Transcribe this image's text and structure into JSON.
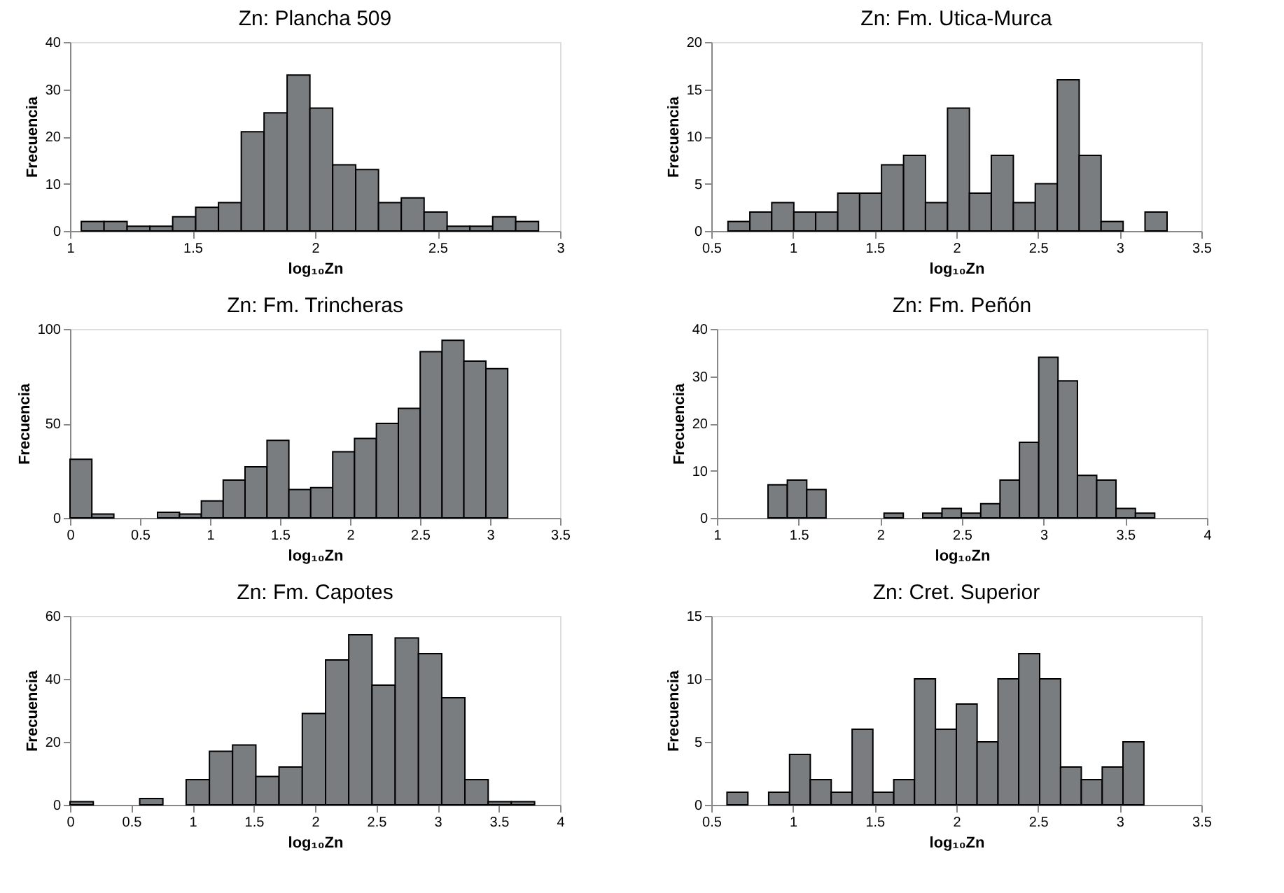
{
  "chart_data": [
    {
      "type": "histogram",
      "title": "Zn: Plancha 509",
      "xlabel": "log₁₀Zn",
      "ylabel": "Frecuencia",
      "color": "#7a7d80",
      "bins": [
        1.046,
        1.139,
        1.233,
        1.326,
        1.419,
        1.513,
        1.606,
        1.699,
        1.792,
        1.886,
        1.979,
        2.072,
        2.166,
        2.259,
        2.352,
        2.445,
        2.539,
        2.632,
        2.725,
        2.819,
        2.912
      ],
      "values": [
        2,
        2,
        1,
        1,
        3,
        5,
        6,
        21,
        25,
        33,
        26,
        14,
        13,
        6,
        7,
        4,
        1,
        1,
        3,
        2
      ],
      "xlim": [
        1,
        3
      ],
      "xticks": [
        1,
        1.5,
        2,
        2.5,
        3
      ],
      "ylim": [
        0,
        40
      ],
      "yticks": [
        0,
        10,
        20,
        30,
        40
      ]
    },
    {
      "type": "histogram",
      "title": "Zn: Fm. Utica-Murca",
      "xlabel": "log₁₀Zn",
      "ylabel": "Frecuencia",
      "color": "#7a7d80",
      "bins": [
        0.602,
        0.736,
        0.87,
        1.005,
        1.139,
        1.274,
        1.408,
        1.542,
        1.677,
        1.811,
        1.946,
        2.08,
        2.214,
        2.349,
        2.483,
        2.618,
        2.752,
        2.886,
        3.021,
        3.155,
        3.29
      ],
      "values": [
        1,
        2,
        3,
        2,
        2,
        4,
        4,
        7,
        8,
        3,
        13,
        4,
        8,
        3,
        5,
        16,
        8,
        1,
        0,
        2
      ],
      "xlim": [
        0.5,
        3.5
      ],
      "xticks": [
        0.5,
        1,
        1.5,
        2,
        2.5,
        3,
        3.5
      ],
      "ylim": [
        0,
        20
      ],
      "yticks": [
        0,
        5,
        10,
        15,
        20
      ]
    },
    {
      "type": "histogram",
      "title": "Zn: Fm. Trincheras",
      "xlabel": "log₁₀Zn",
      "ylabel": "Frecuencia",
      "color": "#7a7d80",
      "bins": [
        0,
        0.156,
        0.313,
        0.469,
        0.625,
        0.782,
        0.938,
        1.094,
        1.25,
        1.407,
        1.563,
        1.719,
        1.876,
        2.032,
        2.188,
        2.345,
        2.501,
        2.657,
        2.813,
        2.97,
        3.126
      ],
      "values": [
        31,
        2,
        0,
        0,
        3,
        2,
        9,
        20,
        27,
        41,
        15,
        16,
        35,
        42,
        50,
        58,
        88,
        94,
        83,
        79
      ],
      "xlim": [
        0,
        3.5
      ],
      "xticks": [
        0,
        0.5,
        1,
        1.5,
        2,
        2.5,
        3,
        3.5
      ],
      "ylim": [
        0,
        100
      ],
      "yticks": [
        0,
        50,
        100
      ]
    },
    {
      "type": "histogram",
      "title": "Zn: Fm. Peñón",
      "xlabel": "log₁₀Zn",
      "ylabel": "Frecuencia",
      "color": "#7a7d80",
      "bins": [
        1.313,
        1.431,
        1.55,
        1.668,
        1.786,
        1.905,
        2.023,
        2.141,
        2.26,
        2.378,
        2.496,
        2.615,
        2.733,
        2.852,
        2.97,
        3.088,
        3.207,
        3.325,
        3.443,
        3.562,
        3.68
      ],
      "values": [
        7,
        8,
        6,
        0,
        0,
        0,
        1,
        0,
        1,
        2,
        1,
        3,
        8,
        16,
        34,
        29,
        9,
        8,
        2,
        1
      ],
      "xlim": [
        1,
        4
      ],
      "xticks": [
        1,
        1.5,
        2,
        2.5,
        3,
        3.5,
        4
      ],
      "ylim": [
        0,
        40
      ],
      "yticks": [
        0,
        10,
        20,
        30,
        40
      ]
    },
    {
      "type": "histogram",
      "title": "Zn: Fm. Capotes",
      "xlabel": "log₁₀Zn",
      "ylabel": "Frecuencia",
      "color": "#7a7d80",
      "bins": [
        0,
        0.19,
        0.379,
        0.569,
        0.758,
        0.948,
        1.138,
        1.327,
        1.517,
        1.706,
        1.896,
        2.086,
        2.275,
        2.465,
        2.654,
        2.844,
        3.034,
        3.223,
        3.413,
        3.602,
        3.792
      ],
      "values": [
        1,
        0,
        0,
        2,
        0,
        8,
        17,
        19,
        9,
        12,
        29,
        46,
        54,
        38,
        53,
        48,
        34,
        8,
        1,
        1
      ],
      "xlim": [
        0,
        4
      ],
      "xticks": [
        0,
        0.5,
        1,
        1.5,
        2,
        2.5,
        3,
        3.5,
        4
      ],
      "ylim": [
        0,
        60
      ],
      "yticks": [
        0,
        20,
        40,
        60
      ]
    },
    {
      "type": "histogram",
      "title": "Zn: Cret. Superior",
      "xlabel": "log₁₀Zn",
      "ylabel": "Frecuencia",
      "color": "#7a7d80",
      "bins": [
        0.596,
        0.724,
        0.851,
        0.979,
        1.106,
        1.234,
        1.362,
        1.489,
        1.617,
        1.744,
        1.872,
        2.0,
        2.127,
        2.255,
        2.382,
        2.51,
        2.638,
        2.765,
        2.893,
        3.02,
        3.148
      ],
      "values": [
        1,
        0,
        1,
        4,
        2,
        1,
        6,
        1,
        2,
        10,
        6,
        8,
        5,
        10,
        12,
        10,
        3,
        2,
        3,
        5
      ],
      "xlim": [
        0.5,
        3.5
      ],
      "xticks": [
        0.5,
        1,
        1.5,
        2,
        2.5,
        3,
        3.5
      ],
      "ylim": [
        0,
        15
      ],
      "yticks": [
        0,
        5,
        10,
        15
      ]
    }
  ]
}
